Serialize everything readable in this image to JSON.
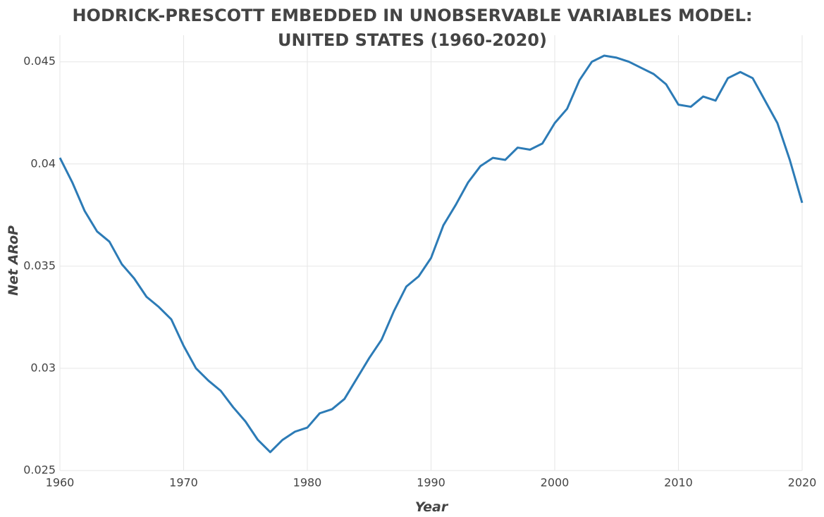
{
  "chart_data": {
    "type": "line",
    "title": [
      "HODRICK-PRESCOTT EMBEDDED IN UNOBSERVABLE VARIABLES MODEL:",
      "UNITED STATES (1960-2020)"
    ],
    "x_label": "Year",
    "y_label": "Net ARoP",
    "x": [
      1960,
      1961,
      1962,
      1963,
      1964,
      1965,
      1966,
      1967,
      1968,
      1969,
      1970,
      1971,
      1972,
      1973,
      1974,
      1975,
      1976,
      1977,
      1978,
      1979,
      1980,
      1981,
      1982,
      1983,
      1984,
      1985,
      1986,
      1987,
      1988,
      1989,
      1990,
      1991,
      1992,
      1993,
      1994,
      1995,
      1996,
      1997,
      1998,
      1999,
      2000,
      2001,
      2002,
      2003,
      2004,
      2005,
      2006,
      2007,
      2008,
      2009,
      2010,
      2011,
      2012,
      2013,
      2014,
      2015,
      2016,
      2017,
      2018,
      2019,
      2020
    ],
    "series": [
      {
        "name": "Net ARoP",
        "color": "#2c7bb6",
        "values": [
          0.0403,
          0.0391,
          0.0377,
          0.0367,
          0.0362,
          0.0351,
          0.0344,
          0.0335,
          0.033,
          0.0324,
          0.0311,
          0.03,
          0.0294,
          0.0289,
          0.0281,
          0.0274,
          0.0265,
          0.0259,
          0.0265,
          0.0269,
          0.0271,
          0.0278,
          0.028,
          0.0285,
          0.0295,
          0.0305,
          0.0314,
          0.0328,
          0.034,
          0.0345,
          0.0354,
          0.037,
          0.038,
          0.0391,
          0.0399,
          0.0403,
          0.0402,
          0.0408,
          0.0407,
          0.041,
          0.042,
          0.0427,
          0.0441,
          0.045,
          0.0453,
          0.0452,
          0.045,
          0.0447,
          0.0444,
          0.0439,
          0.0429,
          0.0428,
          0.0433,
          0.0431,
          0.0442,
          0.0445,
          0.0442,
          0.0431,
          0.042,
          0.0402,
          0.0381
        ]
      }
    ],
    "xlim": [
      1960,
      2020
    ],
    "xticks": [
      1960,
      1970,
      1980,
      1990,
      2000,
      2010,
      2020
    ],
    "ylim": [
      0.025,
      0.0463
    ],
    "yticks": [
      0.025,
      0.03,
      0.035,
      0.04,
      0.045
    ],
    "grid": true
  }
}
